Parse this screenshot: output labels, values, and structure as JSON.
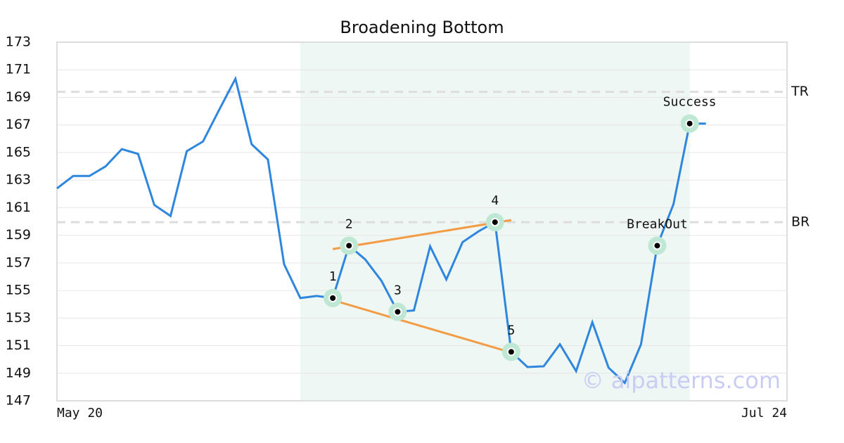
{
  "chart_data": {
    "type": "line",
    "title": "Broadening Bottom",
    "watermark": "© aipatterns.com",
    "x": [
      0,
      1,
      2,
      3,
      4,
      5,
      6,
      7,
      8,
      9,
      10,
      11,
      12,
      13,
      14,
      15,
      16,
      17,
      18,
      19,
      20,
      21,
      22,
      23,
      24,
      25,
      26,
      27,
      28,
      29,
      30,
      31,
      32,
      33,
      34,
      35,
      36,
      37,
      38,
      39,
      40
    ],
    "values": [
      162.4,
      163.3,
      163.3,
      164.0,
      165.25,
      164.9,
      161.2,
      160.4,
      165.1,
      165.8,
      168.1,
      170.35,
      165.6,
      164.5,
      156.9,
      154.45,
      154.6,
      154.45,
      158.25,
      157.25,
      155.7,
      153.45,
      153.55,
      158.2,
      155.8,
      158.5,
      159.3,
      159.95,
      150.55,
      149.45,
      149.5,
      151.1,
      149.15,
      152.7,
      149.4,
      148.3,
      151.1,
      158.25,
      161.25,
      167.1,
      167.1
    ],
    "color": "#2e86de",
    "xlim": [
      0,
      45
    ],
    "xticks": [
      {
        "value": 0,
        "label": "May 20"
      },
      {
        "value": 45,
        "label": "Jul 24"
      }
    ],
    "ylim": [
      147,
      173
    ],
    "yticks": [
      147,
      149,
      151,
      153,
      155,
      157,
      159,
      161,
      163,
      165,
      167,
      169,
      171,
      173
    ],
    "grid": true,
    "shaded_x": [
      15,
      39
    ],
    "shade_color": "#eef7f3",
    "hlines": [
      {
        "label": "TR",
        "value": 169.4
      },
      {
        "label": "BR",
        "value": 159.95
      }
    ],
    "trendlines": [
      {
        "x": [
          17,
          28
        ],
        "y": [
          158.0,
          160.1
        ],
        "color": "#f39c45"
      },
      {
        "x": [
          17,
          28
        ],
        "y": [
          154.3,
          150.5
        ],
        "color": "#f39c45"
      }
    ],
    "markers": [
      {
        "label": "1",
        "x": 17
      },
      {
        "label": "2",
        "x": 18
      },
      {
        "label": "3",
        "x": 21
      },
      {
        "label": "4",
        "x": 27
      },
      {
        "label": "5",
        "x": 28
      },
      {
        "label": "BreakOut",
        "x": 37
      },
      {
        "label": "Success",
        "x": 39
      }
    ]
  }
}
